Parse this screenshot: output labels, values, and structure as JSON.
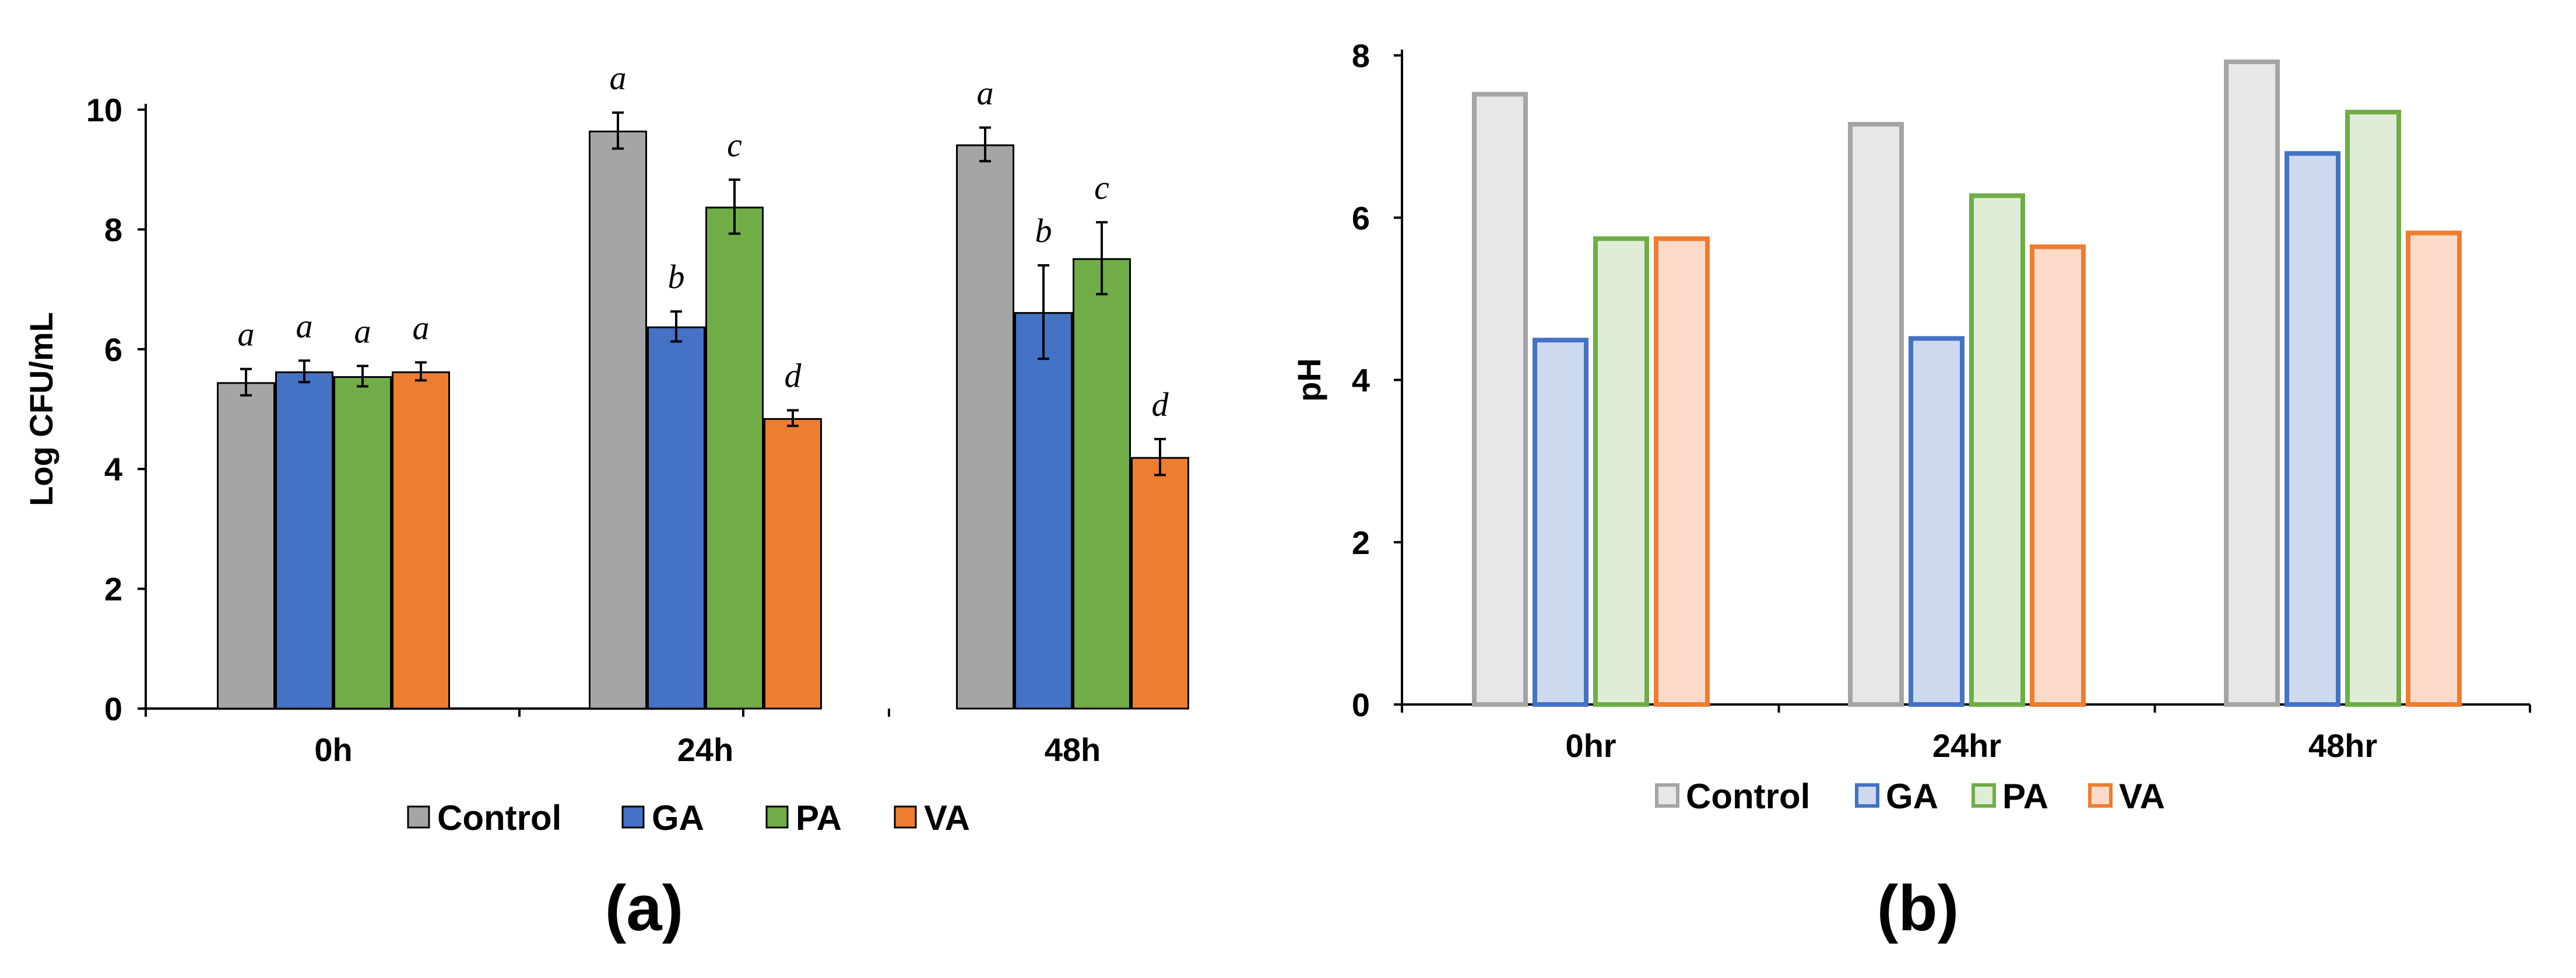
{
  "chart_data": [
    {
      "type": "bar",
      "panel_label": "(a)",
      "ylabel": "Log CFU/mL",
      "ylim": [
        0,
        10
      ],
      "yticks": [
        0,
        2,
        4,
        6,
        8,
        10
      ],
      "grid": false,
      "legend_position": "bottom",
      "categories": [
        "0h",
        "24h",
        "48h"
      ],
      "series": [
        {
          "name": "Control",
          "values": [
            5.45,
            9.65,
            9.42
          ],
          "errors": [
            0.22,
            0.3,
            0.28
          ],
          "labels": [
            "a",
            "a",
            "a"
          ],
          "fill": "#a5a5a5",
          "stroke": "#000000"
        },
        {
          "name": "GA",
          "values": [
            5.63,
            6.38,
            6.62
          ],
          "errors": [
            0.18,
            0.25,
            0.78
          ],
          "labels": [
            "a",
            "b",
            "b"
          ],
          "fill": "#4472c4",
          "stroke": "#000000"
        },
        {
          "name": "PA",
          "values": [
            5.55,
            8.38,
            7.52
          ],
          "errors": [
            0.17,
            0.45,
            0.6
          ],
          "labels": [
            "a",
            "c",
            "c"
          ],
          "fill": "#70ad47",
          "stroke": "#000000"
        },
        {
          "name": "VA",
          "values": [
            5.63,
            4.85,
            4.2
          ],
          "errors": [
            0.15,
            0.13,
            0.3
          ],
          "labels": [
            "a",
            "d",
            "d"
          ],
          "fill": "#ed7d31",
          "stroke": "#000000"
        }
      ]
    },
    {
      "type": "bar",
      "panel_label": "(b)",
      "ylabel": "pH",
      "ylim": [
        0,
        8
      ],
      "yticks": [
        0,
        2,
        4,
        6,
        8
      ],
      "grid": false,
      "legend_position": "bottom",
      "categories": [
        "0hr",
        "24hr",
        "48hr"
      ],
      "series": [
        {
          "name": "Control",
          "values": [
            7.55,
            7.18,
            7.95
          ],
          "fill": "#e7e7e7",
          "stroke": "#a5a5a5"
        },
        {
          "name": "GA",
          "values": [
            4.52,
            4.54,
            6.82
          ],
          "fill": "#cdd9ef",
          "stroke": "#4472c4"
        },
        {
          "name": "PA",
          "values": [
            5.77,
            6.3,
            7.33
          ],
          "fill": "#dfedd6",
          "stroke": "#70ad47"
        },
        {
          "name": "VA",
          "values": [
            5.77,
            5.67,
            5.84
          ],
          "fill": "#fbdac8",
          "stroke": "#ed7d31"
        }
      ]
    }
  ]
}
